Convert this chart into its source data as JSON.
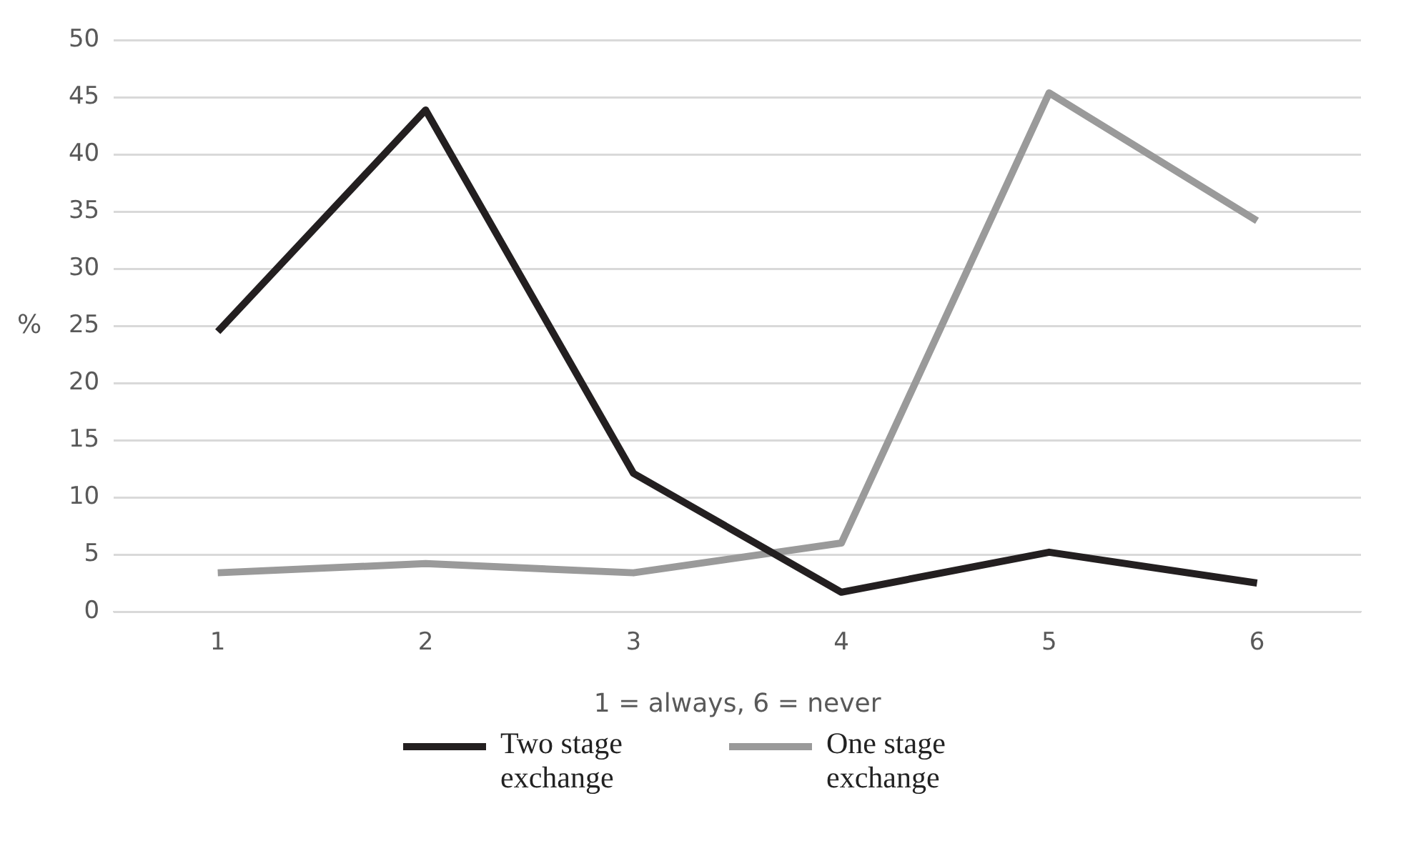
{
  "chart_data": {
    "type": "line",
    "xlabel": "1 = always, 6 = never",
    "ylabel": "%",
    "categories": [
      "1",
      "2",
      "3",
      "4",
      "5",
      "6"
    ],
    "series": [
      {
        "name": "Two stage exchange",
        "color": "#231f20",
        "values": [
          24.5,
          43.9,
          12.1,
          1.7,
          5.2,
          2.5
        ]
      },
      {
        "name": "One stage exchange",
        "color": "#9a9a9a",
        "values": [
          3.4,
          4.2,
          3.4,
          6.0,
          45.4,
          34.2
        ]
      }
    ],
    "ylim": [
      0,
      50
    ],
    "yticks": [
      0,
      5,
      10,
      15,
      20,
      25,
      30,
      35,
      40,
      45,
      50
    ],
    "grid": "y",
    "legend": "bottom",
    "marker": "none",
    "line_style": "solid"
  }
}
